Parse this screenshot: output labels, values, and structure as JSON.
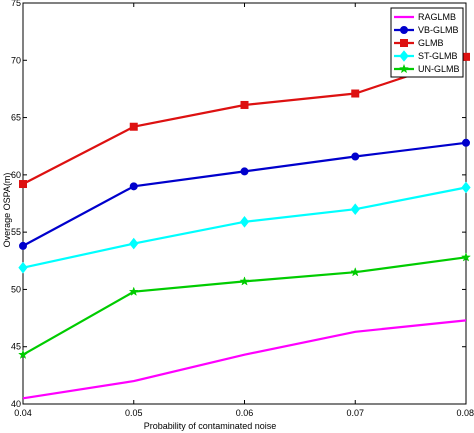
{
  "chart_data": {
    "type": "line",
    "xlabel": "Probability of contaminated noise",
    "ylabel": "Overage OSPA(m)",
    "x": [
      0.04,
      0.05,
      0.06,
      0.07,
      0.08
    ],
    "x_tick_labels": [
      "0.04",
      "0.05",
      "0.06",
      "0.07",
      "0.08"
    ],
    "xlim": [
      0.04,
      0.08
    ],
    "ylim": [
      40,
      75
    ],
    "y_ticks": [
      40,
      45,
      50,
      55,
      60,
      65,
      70,
      75
    ],
    "grid": false,
    "legend_position": "top-right",
    "series": [
      {
        "name": "RAGLMB",
        "color": "#ff00ff",
        "marker": "none",
        "values": [
          40.5,
          42.0,
          44.3,
          46.3,
          47.3
        ]
      },
      {
        "name": "VB-GLMB",
        "color": "#0000cc",
        "marker": "circle",
        "values": [
          53.8,
          59.0,
          60.3,
          61.6,
          62.8
        ]
      },
      {
        "name": "GLMB",
        "color": "#dd1111",
        "marker": "square",
        "values": [
          59.2,
          64.2,
          66.1,
          67.1,
          70.3
        ]
      },
      {
        "name": "ST-GLMB",
        "color": "#00ffff",
        "marker": "diamond",
        "values": [
          51.9,
          54.0,
          55.9,
          57.0,
          58.9
        ]
      },
      {
        "name": "UN-GLMB",
        "color": "#00cc00",
        "marker": "star",
        "values": [
          44.3,
          49.8,
          50.7,
          51.5,
          52.8
        ]
      }
    ]
  }
}
